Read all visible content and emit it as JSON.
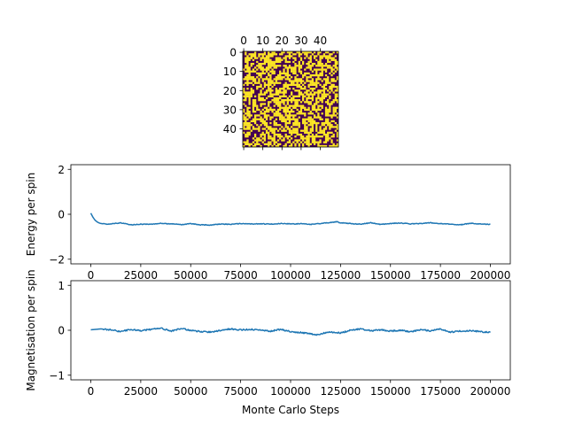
{
  "chart_data": [
    {
      "type": "heatmap",
      "rows": 50,
      "cols": 50,
      "colors": {
        "up": "#fde725",
        "down": "#440154"
      },
      "x_ticks": [
        "0",
        "10",
        "20",
        "30",
        "40"
      ],
      "y_ticks": [
        "0",
        "10",
        "20",
        "30",
        "40"
      ],
      "x_tick_values": [
        0,
        10,
        20,
        30,
        40
      ],
      "y_tick_values": [
        0,
        10,
        20,
        30,
        40
      ],
      "x_axis_position": "top"
    },
    {
      "type": "line",
      "ylabel": "Energy per spin",
      "xlim": [
        0,
        200000
      ],
      "ylim": [
        -2,
        2
      ],
      "x_ticks": [
        "0",
        "25000",
        "50000",
        "75000",
        "100000",
        "125000",
        "150000",
        "175000",
        "200000"
      ],
      "x_tick_values": [
        0,
        25000,
        50000,
        75000,
        100000,
        125000,
        150000,
        175000,
        200000
      ],
      "y_ticks": [
        "−2",
        "0",
        "2"
      ],
      "y_tick_values": [
        -2,
        0,
        2
      ],
      "color": "#1f77b4",
      "x": [
        0,
        1000,
        2000,
        3000,
        4000,
        5000,
        7500,
        10000,
        15000,
        20000,
        25000,
        30000,
        35000,
        40000,
        45000,
        50000,
        55000,
        60000,
        65000,
        70000,
        75000,
        80000,
        85000,
        90000,
        95000,
        100000,
        105000,
        110000,
        115000,
        120000,
        123000,
        125000,
        130000,
        135000,
        140000,
        145000,
        150000,
        155000,
        160000,
        165000,
        170000,
        175000,
        180000,
        185000,
        190000,
        195000,
        200000
      ],
      "y": [
        0.05,
        -0.12,
        -0.25,
        -0.33,
        -0.38,
        -0.41,
        -0.44,
        -0.43,
        -0.38,
        -0.47,
        -0.44,
        -0.45,
        -0.4,
        -0.43,
        -0.46,
        -0.42,
        -0.47,
        -0.48,
        -0.43,
        -0.45,
        -0.41,
        -0.43,
        -0.42,
        -0.44,
        -0.41,
        -0.43,
        -0.42,
        -0.45,
        -0.41,
        -0.37,
        -0.33,
        -0.38,
        -0.41,
        -0.44,
        -0.38,
        -0.45,
        -0.41,
        -0.39,
        -0.43,
        -0.41,
        -0.38,
        -0.42,
        -0.44,
        -0.47,
        -0.4,
        -0.43,
        -0.45
      ]
    },
    {
      "type": "line",
      "xlabel": "Monte Carlo Steps",
      "ylabel": "Magnetisation per spin",
      "xlim": [
        0,
        200000
      ],
      "ylim": [
        -1,
        1
      ],
      "x_ticks": [
        "0",
        "25000",
        "50000",
        "75000",
        "100000",
        "125000",
        "150000",
        "175000",
        "200000"
      ],
      "x_tick_values": [
        0,
        25000,
        50000,
        75000,
        100000,
        125000,
        150000,
        175000,
        200000
      ],
      "y_ticks": [
        "−1",
        "0",
        "1"
      ],
      "y_tick_values": [
        -1,
        0,
        1
      ],
      "color": "#1f77b4",
      "x": [
        0,
        5000,
        10000,
        15000,
        20000,
        25000,
        30000,
        35000,
        40000,
        45000,
        50000,
        55000,
        60000,
        65000,
        70000,
        75000,
        80000,
        85000,
        90000,
        95000,
        100000,
        105000,
        110000,
        113000,
        116000,
        120000,
        125000,
        130000,
        135000,
        140000,
        145000,
        150000,
        155000,
        160000,
        165000,
        170000,
        175000,
        180000,
        185000,
        190000,
        195000,
        200000
      ],
      "y": [
        0.01,
        0.03,
        0.01,
        -0.03,
        0.02,
        -0.01,
        0.02,
        0.05,
        -0.02,
        0.04,
        0.0,
        -0.03,
        -0.04,
        0.0,
        0.03,
        0.01,
        0.02,
        0.0,
        -0.02,
        0.02,
        -0.03,
        -0.05,
        -0.08,
        -0.1,
        -0.07,
        -0.04,
        -0.06,
        0.0,
        0.03,
        -0.01,
        0.01,
        -0.02,
        0.0,
        -0.03,
        0.01,
        -0.01,
        0.03,
        -0.04,
        -0.02,
        -0.01,
        -0.03,
        -0.05
      ]
    }
  ]
}
